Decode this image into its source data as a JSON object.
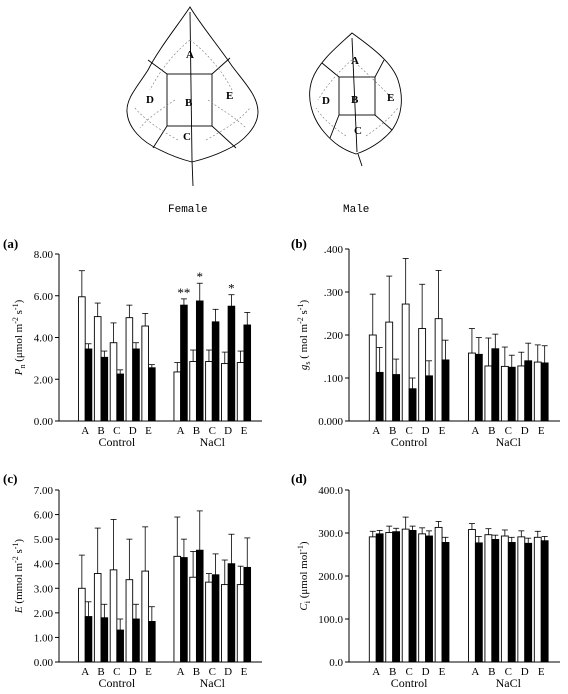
{
  "leaves": {
    "female_label": "Female",
    "male_label": "Male",
    "region_labels": [
      "A",
      "B",
      "C",
      "D",
      "E"
    ]
  },
  "colors": {
    "control_bar": "#ffffff",
    "nacl_bar": "#000000",
    "ink": "#000000"
  },
  "chart_data": [
    {
      "type": "bar",
      "panel": "(a)",
      "ylabel": "Pn (μmol m-2 s-1)",
      "ylabel_parts": {
        "main": "P",
        "sub": "n",
        "unit": " (μmol m",
        "exp1": "-2",
        "mid": " s",
        "exp2": "-1",
        "close": ")"
      },
      "ylim": [
        0,
        8
      ],
      "yticks": [
        "0.00",
        "2.00",
        "4.00",
        "6.00",
        "8.00"
      ],
      "ytick_values": [
        0,
        2,
        4,
        6,
        8
      ],
      "groups": [
        "Control",
        "NaCl"
      ],
      "categories": [
        "A",
        "B",
        "C",
        "D",
        "E"
      ],
      "bar_pair_style": [
        "white",
        "black"
      ],
      "series": [
        {
          "group": "Control",
          "values": [
            [
              5.95,
              3.45
            ],
            [
              5.0,
              3.05
            ],
            [
              3.75,
              2.25
            ],
            [
              4.95,
              3.45
            ],
            [
              4.55,
              2.55
            ]
          ],
          "errors": [
            [
              1.25,
              0.25
            ],
            [
              0.65,
              0.3
            ],
            [
              0.95,
              0.2
            ],
            [
              0.6,
              0.3
            ],
            [
              0.6,
              0.15
            ]
          ]
        },
        {
          "group": "NaCl",
          "values": [
            [
              2.35,
              5.55
            ],
            [
              2.85,
              5.75
            ],
            [
              2.85,
              4.75
            ],
            [
              2.75,
              5.5
            ],
            [
              2.8,
              4.6
            ]
          ],
          "errors": [
            [
              0.45,
              0.3
            ],
            [
              0.55,
              0.85
            ],
            [
              0.55,
              0.6
            ],
            [
              0.55,
              0.55
            ],
            [
              0.55,
              0.6
            ]
          ]
        }
      ],
      "annotations": [
        {
          "text": "**",
          "group": "NaCl",
          "category": "A"
        },
        {
          "text": "*",
          "group": "NaCl",
          "category": "B"
        },
        {
          "text": "*",
          "group": "NaCl",
          "category": "D"
        }
      ]
    },
    {
      "type": "bar",
      "panel": "(b)",
      "ylabel": "gs ( mol m-2 s-1)",
      "ylabel_parts": {
        "main": "g",
        "sub": "s",
        "unit": " ( mol m",
        "exp1": "-2",
        "mid": " s",
        "exp2": "-1",
        "close": ")"
      },
      "ylim": [
        0,
        0.4
      ],
      "yticks": [
        "0.000",
        ".100",
        ".200",
        ".300",
        ".400"
      ],
      "ytick_values": [
        0,
        0.1,
        0.2,
        0.3,
        0.4
      ],
      "groups": [
        "Control",
        "NaCl"
      ],
      "categories": [
        "A",
        "B",
        "C",
        "D",
        "E"
      ],
      "bar_pair_style": [
        "white",
        "black"
      ],
      "series": [
        {
          "group": "Control",
          "values": [
            [
              0.2,
              0.113
            ],
            [
              0.23,
              0.108
            ],
            [
              0.272,
              0.075
            ],
            [
              0.215,
              0.105
            ],
            [
              0.238,
              0.142
            ]
          ],
          "errors": [
            [
              0.095,
              0.058
            ],
            [
              0.107,
              0.036
            ],
            [
              0.106,
              0.025
            ],
            [
              0.103,
              0.035
            ],
            [
              0.112,
              0.046
            ]
          ]
        },
        {
          "group": "NaCl",
          "values": [
            [
              0.158,
              0.155
            ],
            [
              0.128,
              0.168
            ],
            [
              0.127,
              0.125
            ],
            [
              0.128,
              0.14
            ],
            [
              0.137,
              0.135
            ]
          ],
          "errors": [
            [
              0.057,
              0.039
            ],
            [
              0.065,
              0.034
            ],
            [
              0.045,
              0.028
            ],
            [
              0.032,
              0.041
            ],
            [
              0.04,
              0.04
            ]
          ]
        }
      ],
      "annotations": []
    },
    {
      "type": "bar",
      "panel": "(c)",
      "ylabel": "E (mmol m-2 s-1)",
      "ylabel_parts": {
        "main": "E",
        "sub": "",
        "unit": " (mmol m",
        "exp1": "-2",
        "mid": " s",
        "exp2": "-1",
        "close": ")"
      },
      "ylim": [
        0,
        7
      ],
      "yticks": [
        "0.00",
        "1.00",
        "2.00",
        "3.00",
        "4.00",
        "5.00",
        "6.00",
        "7.00"
      ],
      "ytick_values": [
        0,
        1,
        2,
        3,
        4,
        5,
        6,
        7
      ],
      "groups": [
        "Control",
        "NaCl"
      ],
      "categories": [
        "A",
        "B",
        "C",
        "D",
        "E"
      ],
      "bar_pair_style": [
        "white",
        "black"
      ],
      "series": [
        {
          "group": "Control",
          "values": [
            [
              3.0,
              1.85
            ],
            [
              3.6,
              1.8
            ],
            [
              3.75,
              1.3
            ],
            [
              3.35,
              1.75
            ],
            [
              3.7,
              1.65
            ]
          ],
          "errors": [
            [
              1.35,
              0.6
            ],
            [
              1.85,
              0.55
            ],
            [
              2.05,
              0.45
            ],
            [
              1.65,
              0.6
            ],
            [
              1.8,
              0.6
            ]
          ]
        },
        {
          "group": "NaCl",
          "values": [
            [
              4.3,
              4.25
            ],
            [
              3.45,
              4.55
            ],
            [
              3.25,
              3.55
            ],
            [
              3.15,
              4.0
            ],
            [
              3.15,
              3.85
            ]
          ],
          "errors": [
            [
              1.6,
              0.75
            ],
            [
              1.05,
              1.6
            ],
            [
              0.35,
              0.85
            ],
            [
              1.0,
              1.2
            ],
            [
              0.75,
              1.2
            ]
          ]
        }
      ],
      "annotations": []
    },
    {
      "type": "bar",
      "panel": "(d)",
      "ylabel": "Ci (μmol mol-1)",
      "ylabel_parts": {
        "main": "C",
        "sub": "i",
        "unit": " (μmol mol",
        "exp1": "-1",
        "mid": "",
        "exp2": "",
        "close": ")"
      },
      "ylim": [
        0,
        400
      ],
      "yticks": [
        "0.0",
        "100.0",
        "200.0",
        "300.0",
        "400.0"
      ],
      "ytick_values": [
        0,
        100,
        200,
        300,
        400
      ],
      "groups": [
        "Control",
        "NaCl"
      ],
      "categories": [
        "A",
        "B",
        "C",
        "D",
        "E"
      ],
      "bar_pair_style": [
        "white",
        "black"
      ],
      "series": [
        {
          "group": "Control",
          "values": [
            [
              291,
              298
            ],
            [
              301,
              303
            ],
            [
              309,
              306
            ],
            [
              298,
              293
            ],
            [
              313,
              278
            ]
          ],
          "errors": [
            [
              13,
              8
            ],
            [
              15,
              8
            ],
            [
              28,
              10
            ],
            [
              14,
              12
            ],
            [
              14,
              12
            ]
          ]
        },
        {
          "group": "NaCl",
          "values": [
            [
              308,
              277
            ],
            [
              296,
              285
            ],
            [
              293,
              278
            ],
            [
              291,
              276
            ],
            [
              290,
              282
            ]
          ],
          "errors": [
            [
              14,
              15
            ],
            [
              14,
              10
            ],
            [
              14,
              12
            ],
            [
              14,
              12
            ],
            [
              14,
              10
            ]
          ]
        }
      ],
      "annotations": []
    }
  ]
}
